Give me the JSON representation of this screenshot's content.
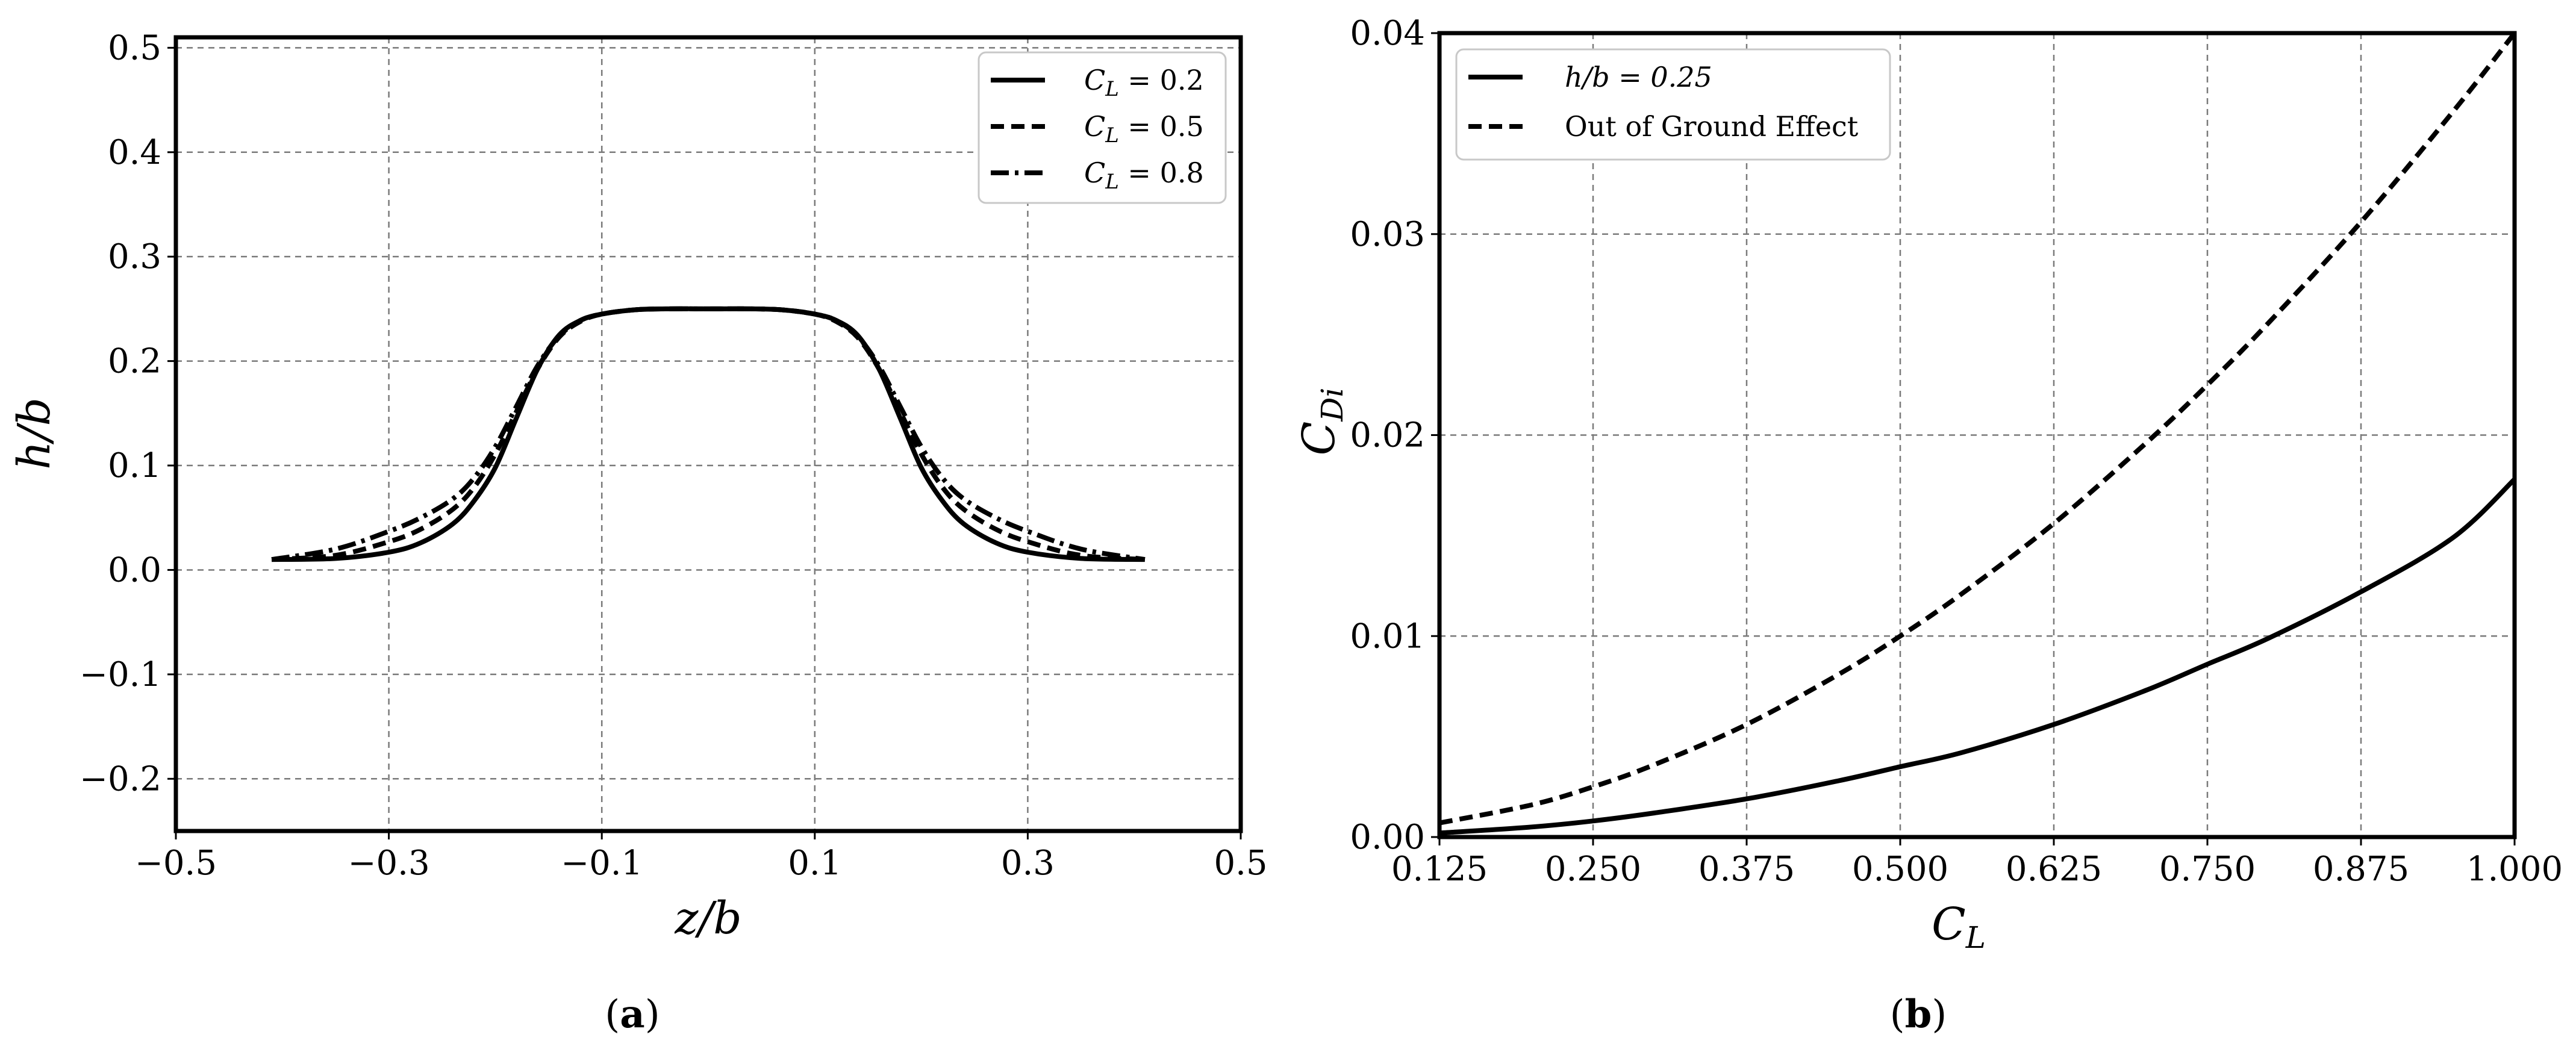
{
  "chart_data": [
    {
      "type": "line",
      "panel_label": "(a)",
      "panel_letter": "a",
      "xlabel": "z/b",
      "ylabel": "h/b",
      "xlim": [
        -0.5,
        0.5
      ],
      "ylim": [
        -0.25,
        0.51
      ],
      "xticks": [
        -0.5,
        -0.3,
        -0.1,
        0.1,
        0.3,
        0.5
      ],
      "xtick_labels": [
        "−0.5",
        "−0.3",
        "−0.1",
        "0.1",
        "0.3",
        "0.5"
      ],
      "yticks": [
        -0.2,
        -0.1,
        0.0,
        0.1,
        0.2,
        0.3,
        0.4,
        0.5
      ],
      "ytick_labels": [
        "−0.2",
        "−0.1",
        "0.0",
        "0.1",
        "0.2",
        "0.3",
        "0.4",
        "0.5"
      ],
      "grid": true,
      "legend_position": "top-right",
      "series": [
        {
          "name": "C_L = 0.2",
          "legend_main": "C",
          "legend_sub": "L",
          "legend_rest": " = 0.2",
          "style": "solid",
          "x": [
            -0.41,
            -0.35,
            -0.3,
            -0.27,
            -0.24,
            -0.22,
            -0.2,
            -0.18,
            -0.16,
            -0.14,
            -0.12,
            -0.1,
            -0.07,
            -0.04,
            0.0,
            0.04,
            0.07,
            0.1,
            0.12,
            0.14,
            0.16,
            0.18,
            0.2,
            0.22,
            0.24,
            0.27,
            0.3,
            0.35,
            0.41
          ],
          "y": [
            0.01,
            0.011,
            0.017,
            0.026,
            0.044,
            0.066,
            0.098,
            0.146,
            0.193,
            0.225,
            0.239,
            0.245,
            0.249,
            0.25,
            0.25,
            0.25,
            0.249,
            0.245,
            0.239,
            0.225,
            0.193,
            0.146,
            0.098,
            0.066,
            0.044,
            0.026,
            0.017,
            0.011,
            0.01
          ]
        },
        {
          "name": "C_L = 0.5",
          "legend_main": "C",
          "legend_sub": "L",
          "legend_rest": " = 0.5",
          "style": "dashed",
          "x": [
            -0.41,
            -0.35,
            -0.3,
            -0.27,
            -0.24,
            -0.22,
            -0.2,
            -0.18,
            -0.16,
            -0.14,
            -0.12,
            -0.1,
            -0.07,
            -0.04,
            0.0,
            0.04,
            0.07,
            0.1,
            0.12,
            0.14,
            0.16,
            0.18,
            0.2,
            0.22,
            0.24,
            0.27,
            0.3,
            0.35,
            0.41
          ],
          "y": [
            0.01,
            0.014,
            0.027,
            0.039,
            0.058,
            0.079,
            0.111,
            0.152,
            0.193,
            0.223,
            0.238,
            0.245,
            0.249,
            0.25,
            0.25,
            0.25,
            0.249,
            0.245,
            0.238,
            0.223,
            0.193,
            0.152,
            0.111,
            0.079,
            0.058,
            0.039,
            0.027,
            0.014,
            0.01
          ]
        },
        {
          "name": "C_L = 0.8",
          "legend_main": "C",
          "legend_sub": "L",
          "legend_rest": " = 0.8",
          "style": "dashdot",
          "x": [
            -0.41,
            -0.35,
            -0.3,
            -0.27,
            -0.24,
            -0.22,
            -0.2,
            -0.18,
            -0.16,
            -0.14,
            -0.12,
            -0.1,
            -0.07,
            -0.04,
            0.0,
            0.04,
            0.07,
            0.1,
            0.12,
            0.14,
            0.16,
            0.18,
            0.2,
            0.22,
            0.24,
            0.27,
            0.3,
            0.35,
            0.41
          ],
          "y": [
            0.01,
            0.02,
            0.037,
            0.05,
            0.068,
            0.088,
            0.118,
            0.157,
            0.196,
            0.224,
            0.239,
            0.245,
            0.249,
            0.25,
            0.25,
            0.25,
            0.249,
            0.245,
            0.239,
            0.224,
            0.196,
            0.157,
            0.118,
            0.088,
            0.068,
            0.05,
            0.037,
            0.02,
            0.01
          ]
        }
      ]
    },
    {
      "type": "line",
      "panel_label": "(b)",
      "panel_letter": "b",
      "xlabel": "C_L",
      "xlabel_main": "C",
      "xlabel_sub": "L",
      "ylabel": "C_Di",
      "ylabel_main": "C",
      "ylabel_sub": "Di",
      "xlim": [
        0.125,
        1.0
      ],
      "ylim": [
        0.0,
        0.04
      ],
      "xticks": [
        0.125,
        0.25,
        0.375,
        0.5,
        0.625,
        0.75,
        0.875,
        1.0
      ],
      "xtick_labels": [
        "0.125",
        "0.250",
        "0.375",
        "0.500",
        "0.625",
        "0.750",
        "0.875",
        "1.000"
      ],
      "yticks": [
        0.0,
        0.01,
        0.02,
        0.03,
        0.04
      ],
      "ytick_labels": [
        "0.00",
        "0.01",
        "0.02",
        "0.03",
        "0.04"
      ],
      "grid": true,
      "legend_position": "top-left",
      "series": [
        {
          "name": "h/b = 0.25",
          "legend_text": "h/b = 0.25",
          "style": "solid",
          "x": [
            0.125,
            0.2,
            0.25,
            0.3,
            0.375,
            0.45,
            0.5,
            0.55,
            0.625,
            0.7,
            0.75,
            0.8,
            0.875,
            0.95,
            1.0
          ],
          "y": [
            0.0002,
            0.0005,
            0.0008,
            0.0012,
            0.0019,
            0.0028,
            0.0035,
            0.0042,
            0.0056,
            0.0073,
            0.0086,
            0.0099,
            0.0122,
            0.0149,
            0.0178
          ]
        },
        {
          "name": "Out of Ground Effect",
          "legend_text": "Out of Ground Effect",
          "style": "dashed",
          "x": [
            0.125,
            0.2,
            0.25,
            0.3,
            0.375,
            0.45,
            0.5,
            0.55,
            0.625,
            0.7,
            0.75,
            0.8,
            0.875,
            0.95,
            1.0
          ],
          "y": [
            0.0007,
            0.0016,
            0.0025,
            0.0036,
            0.0056,
            0.0081,
            0.01,
            0.0121,
            0.0156,
            0.0196,
            0.0225,
            0.0256,
            0.0306,
            0.0361,
            0.04
          ]
        }
      ]
    }
  ]
}
